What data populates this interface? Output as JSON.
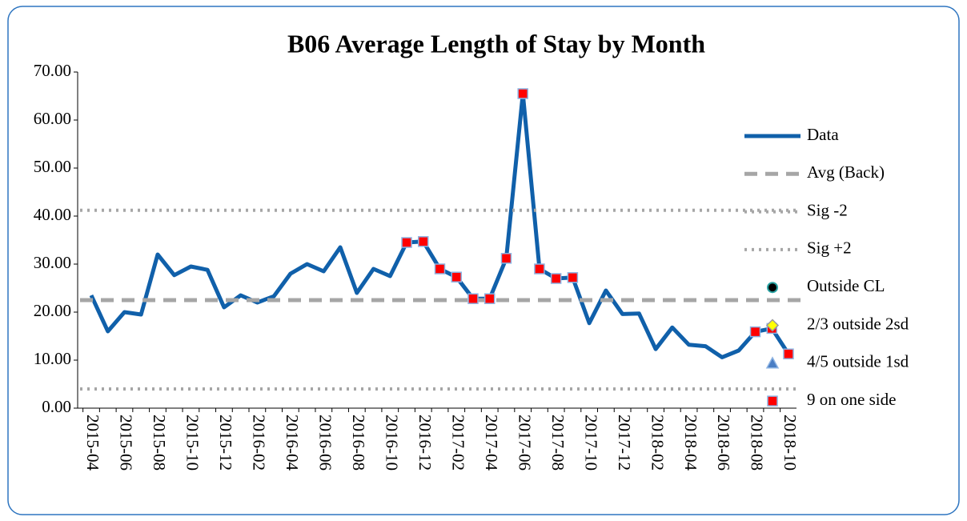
{
  "chart_data": {
    "type": "line",
    "title": "B06 Average Length of Stay by Month",
    "categories": [
      "2015-04",
      null,
      "2015-06",
      null,
      "2015-08",
      null,
      "2015-10",
      null,
      "2015-12",
      null,
      "2016-02",
      null,
      "2016-04",
      null,
      "2016-06",
      null,
      "2016-08",
      null,
      "2016-10",
      null,
      "2016-12",
      null,
      "2017-02",
      null,
      "2017-04",
      null,
      "2017-06",
      null,
      "2017-08",
      null,
      "2017-10",
      null,
      "2017-12",
      null,
      "2018-02",
      null,
      "2018-04",
      null,
      "2018-06",
      null,
      "2018-08",
      null,
      "2018-10"
    ],
    "ylim": [
      0,
      70
    ],
    "yticks": [
      {
        "value": 0,
        "label": "0.00"
      },
      {
        "value": 10,
        "label": "10.00"
      },
      {
        "value": 20,
        "label": "20.00"
      },
      {
        "value": 30,
        "label": "30.00"
      },
      {
        "value": 40,
        "label": "40.00"
      },
      {
        "value": 50,
        "label": "50.00"
      },
      {
        "value": 60,
        "label": "60.00"
      },
      {
        "value": 70,
        "label": "70.00"
      }
    ],
    "series": [
      {
        "name": "Data",
        "color": "#1060aa",
        "style": "solid",
        "values": [
          23.5,
          16,
          20,
          19.5,
          32,
          27.7,
          29.5,
          28.8,
          21,
          23.5,
          22,
          23.3,
          28,
          30,
          28.5,
          33.5,
          24,
          29,
          27.5,
          34.5,
          34.7,
          29,
          27.3,
          22.8,
          22.8,
          31.2,
          65.5,
          29,
          27,
          27.2,
          17.7,
          24.5,
          19.6,
          19.7,
          12.3,
          16.8,
          13.2,
          12.9,
          10.6,
          12,
          15.9,
          16.6,
          11.3
        ]
      },
      {
        "name": "Avg (Back)",
        "color": "#a6a6a6",
        "style": "dashed",
        "value": 22.5
      },
      {
        "name": "Sig -2",
        "color": "#a6a6a6",
        "style": "dotted",
        "value": 4
      },
      {
        "name": "Sig +2",
        "color": "#a6a6a6",
        "style": "dotted",
        "value": 41.2
      },
      {
        "name": "Outside CL",
        "color": "#000000",
        "marker": "circle"
      },
      {
        "name": "2/3 outside 2sd",
        "color": "#ffff00",
        "marker": "diamond"
      },
      {
        "name": "4/5 outside 1sd",
        "color": "#4a7ec4",
        "marker": "triangle"
      },
      {
        "name": "9 on one side",
        "color": "#ff0000",
        "marker": "square",
        "values": [
          null,
          null,
          null,
          null,
          null,
          null,
          null,
          null,
          null,
          null,
          null,
          null,
          null,
          null,
          null,
          null,
          null,
          null,
          null,
          34.5,
          34.7,
          29,
          27.3,
          22.8,
          22.8,
          31.2,
          65.5,
          29,
          27,
          27.2,
          null,
          null,
          null,
          null,
          null,
          null,
          null,
          null,
          null,
          null,
          15.9,
          16.6,
          11.3
        ]
      }
    ]
  }
}
